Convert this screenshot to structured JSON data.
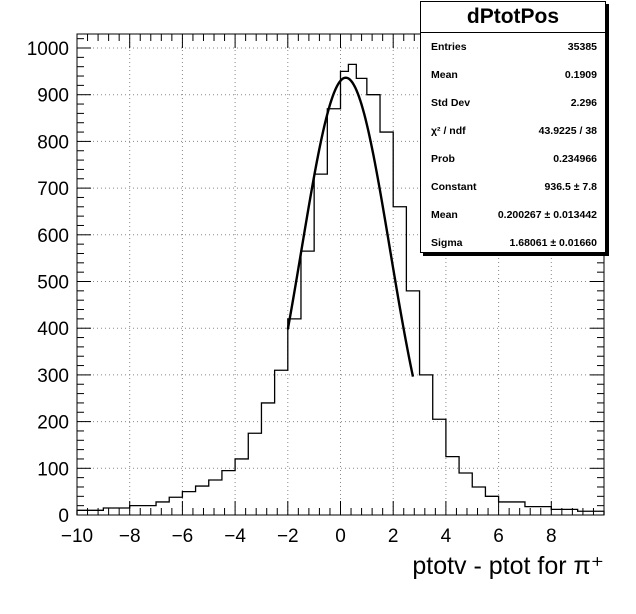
{
  "chart_data": {
    "type": "bar",
    "style": "step-histogram with gaussian fit",
    "xlabel": "ptotv - ptot for π⁺",
    "ylabel": "",
    "xlim": [
      -10,
      10
    ],
    "ylim": [
      0,
      1030
    ],
    "x_ticks": [
      "−10",
      "−8",
      "−6",
      "−4",
      "−2",
      "0",
      "2",
      "4",
      "6",
      "8"
    ],
    "x_tick_values": [
      -10,
      -8,
      -6,
      -4,
      -2,
      0,
      2,
      4,
      6,
      8
    ],
    "y_ticks": [
      "0",
      "100",
      "200",
      "300",
      "400",
      "500",
      "600",
      "700",
      "800",
      "900",
      "1000"
    ],
    "y_tick_values": [
      0,
      100,
      200,
      300,
      400,
      500,
      600,
      700,
      800,
      900,
      1000
    ],
    "grid": true,
    "bins": {
      "x": [
        -10,
        -9,
        -8,
        -7,
        -6.5,
        -6,
        -5.5,
        -5,
        -4.5,
        -4,
        -3.5,
        -3,
        -2.5,
        -2,
        -1.5,
        -1,
        -0.5,
        0,
        0.3,
        0.6,
        1,
        1.5,
        2,
        2.5,
        3,
        3.5,
        4,
        4.5,
        5,
        5.5,
        6,
        7,
        8,
        9,
        10
      ],
      "y": [
        10,
        15,
        20,
        28,
        38,
        50,
        62,
        75,
        95,
        120,
        175,
        240,
        310,
        420,
        565,
        730,
        870,
        950,
        965,
        935,
        900,
        820,
        660,
        480,
        300,
        205,
        125,
        90,
        60,
        40,
        28,
        18,
        12,
        8,
        5
      ]
    },
    "fit": {
      "type": "gaussian",
      "constant": 936.5,
      "mean": 0.200267,
      "sigma": 1.68061
    }
  },
  "stats": {
    "title": "dPtotPos",
    "rows": [
      {
        "label": "Entries",
        "value": "35385"
      },
      {
        "label": "Mean",
        "value": "0.1909"
      },
      {
        "label": "Std Dev",
        "value": "2.296"
      },
      {
        "label": "χ² / ndf",
        "value": "43.9225 / 38"
      },
      {
        "label": "Prob",
        "value": "0.234966"
      },
      {
        "label": "Constant",
        "value": "936.5 ± 7.8"
      },
      {
        "label": "Mean",
        "value": "0.200267 ± 0.013442"
      },
      {
        "label": "Sigma",
        "value": "1.68061 ± 0.01660"
      }
    ]
  }
}
